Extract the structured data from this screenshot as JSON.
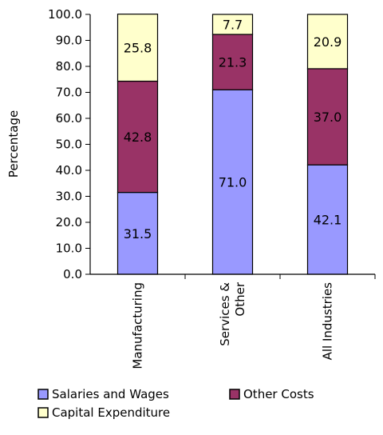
{
  "chart_data": {
    "type": "bar",
    "stacked": true,
    "title": "",
    "xlabel": "",
    "ylabel": "Percentage",
    "ylim": [
      0,
      100
    ],
    "yticks": [
      "0.0",
      "10.0",
      "20.0",
      "30.0",
      "40.0",
      "50.0",
      "60.0",
      "70.0",
      "80.0",
      "90.0",
      "100.0"
    ],
    "categories": [
      "Manufacturing",
      "Services & Other",
      "All Industries"
    ],
    "series": [
      {
        "name": "Salaries and Wages",
        "color": "#9999FF",
        "values": [
          31.5,
          71.0,
          42.1
        ]
      },
      {
        "name": "Other Costs",
        "color": "#993366",
        "values": [
          42.8,
          21.3,
          37.0
        ]
      },
      {
        "name": "Capital Expenditure",
        "color": "#FFFFCC",
        "values": [
          25.8,
          7.7,
          20.9
        ]
      }
    ],
    "data_labels": [
      [
        "31.5",
        "71.0",
        "42.1"
      ],
      [
        "42.8",
        "21.3",
        "37.0"
      ],
      [
        "25.8",
        "7.7",
        "20.9"
      ]
    ],
    "legend": {
      "position": "bottom",
      "items": [
        "Salaries and Wages",
        "Other Costs",
        "Capital Expenditure"
      ]
    },
    "grid": false
  }
}
